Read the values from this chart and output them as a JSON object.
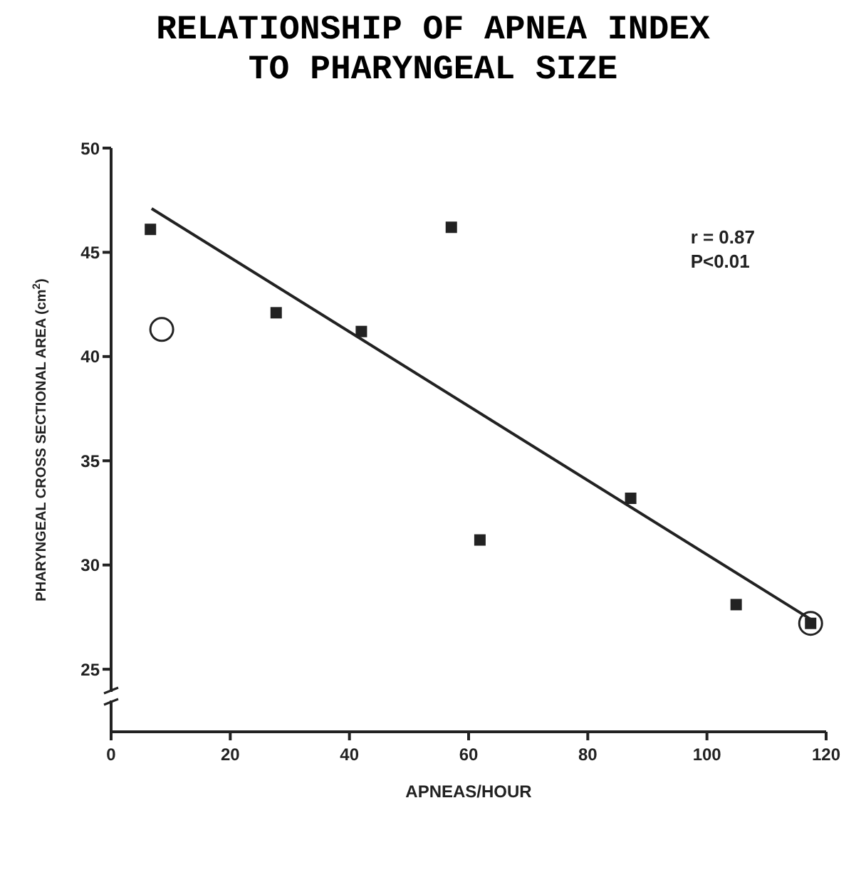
{
  "chart_data": {
    "type": "scatter",
    "title": "RELATIONSHIP OF APNEA INDEX TO PHARYNGEAL SIZE",
    "xlabel": "APNEAS/HOUR",
    "ylabel": "PHARYNGEAL CROSS SECTIONAL AREA (cm$^{2}$)",
    "annotations": [
      "r = 0.87",
      "P<0.01"
    ],
    "xlim": [
      0,
      120
    ],
    "xticks": [
      0,
      20,
      40,
      60,
      80,
      100,
      120
    ],
    "ylim": [
      22,
      50
    ],
    "yticks": [
      25,
      30,
      35,
      40,
      45,
      50
    ],
    "series": [
      {
        "marker": "square",
        "color": "#222222",
        "x": [
          6.6,
          27.7,
          42.0,
          57.1,
          61.9,
          87.2,
          104.9,
          117.4
        ],
        "values": [
          46.1,
          42.1,
          41.2,
          46.2,
          31.2,
          33.2,
          28.1,
          27.2
        ]
      },
      {
        "marker": "circle",
        "color": "#222222",
        "x": [
          8.5,
          117.4
        ],
        "values": [
          41.3,
          27.2
        ]
      },
      {
        "type": "line",
        "marker": "none",
        "color": "#222222",
        "x": [
          6.8,
          117.4
        ],
        "values": [
          47.1,
          27.4
        ]
      }
    ]
  }
}
